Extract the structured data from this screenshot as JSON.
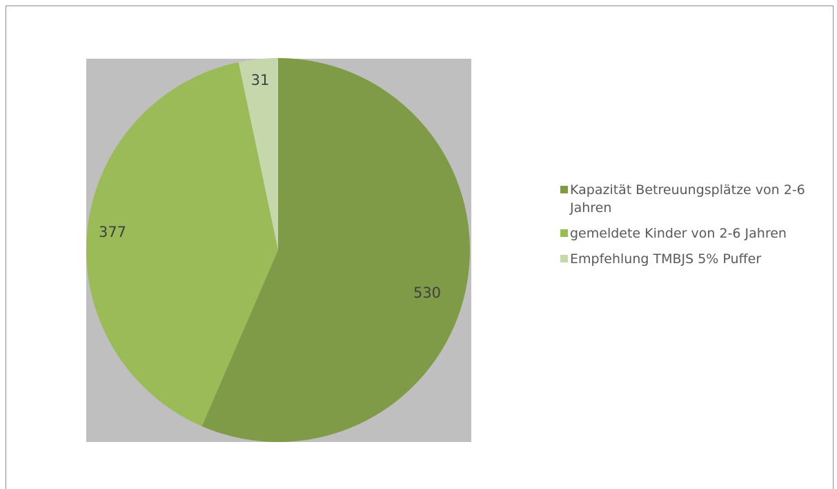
{
  "chart_data": {
    "type": "pie",
    "title": "",
    "slices": [
      {
        "label": "Kapazität Betreuungsplätze von 2-6 Jahren",
        "value": 530,
        "color": "#7f9b47"
      },
      {
        "label": "gemeldete Kinder von 2-6 Jahren",
        "value": 377,
        "color": "#9bbb59"
      },
      {
        "label": "Empfehlung TMBJS 5% Puffer",
        "value": 31,
        "color": "#c6d7ac"
      }
    ],
    "legend_position": "right",
    "plot_background": "#bfbfbf"
  }
}
